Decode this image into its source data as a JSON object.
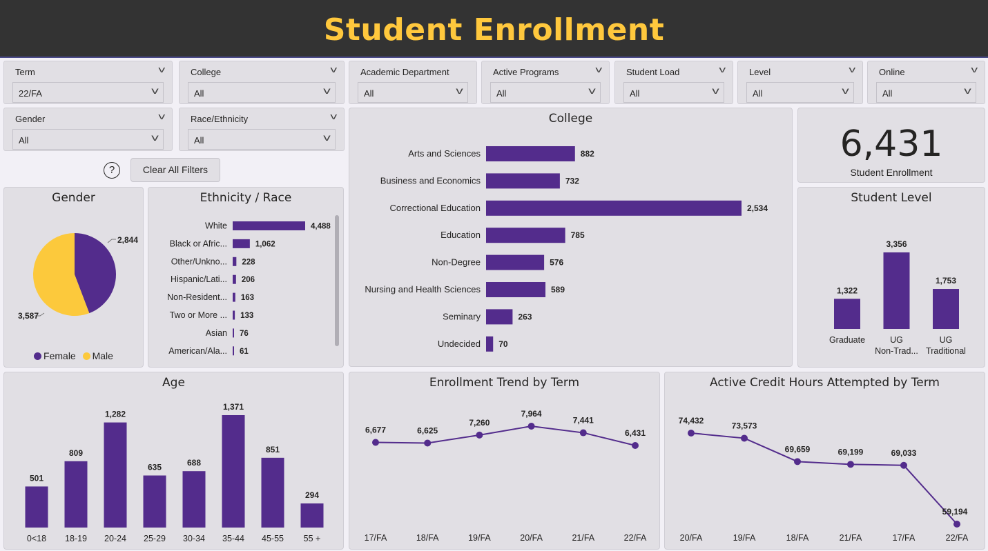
{
  "header": {
    "title": "Student Enrollment"
  },
  "slicers": [
    {
      "label": "Term",
      "value": "22/FA"
    },
    {
      "label": "College",
      "value": "All"
    },
    {
      "label": "Academic Department",
      "value": "All"
    },
    {
      "label": "Active Programs",
      "value": "All"
    },
    {
      "label": "Student Load",
      "value": "All"
    },
    {
      "label": "Level",
      "value": "All"
    },
    {
      "label": "Online",
      "value": "All"
    },
    {
      "label": "Gender",
      "value": "All"
    },
    {
      "label": "Race/Ethnicity",
      "value": "All"
    }
  ],
  "actions": {
    "help": "?",
    "clear_label": "Clear All Filters"
  },
  "kpi": {
    "value": "6,431",
    "label": "Student Enrollment"
  },
  "colors": {
    "purple": "#532c8c",
    "gold": "#fcc93c"
  },
  "icons": [
    "chevron-down-icon",
    "help-icon"
  ],
  "chart_data": [
    {
      "type": "pie",
      "title": "Gender",
      "categories": [
        "Female",
        "Male"
      ],
      "values": [
        2844,
        3587
      ],
      "labels": [
        "2,844",
        "3,587"
      ],
      "legend": [
        "Female",
        "Male"
      ]
    },
    {
      "type": "bar",
      "orientation": "horizontal",
      "title": "Ethnicity / Race",
      "categories": [
        "White",
        "Black or Afric...",
        "Other/Unkno...",
        "Hispanic/Lati...",
        "Non-Resident...",
        "Two or More ...",
        "Asian",
        "American/Ala..."
      ],
      "values": [
        4488,
        1062,
        228,
        206,
        163,
        133,
        76,
        61
      ],
      "labels": [
        "4,488",
        "1,062",
        "228",
        "206",
        "163",
        "133",
        "76",
        "61"
      ]
    },
    {
      "type": "bar",
      "orientation": "horizontal",
      "title": "College",
      "categories": [
        "Arts and Sciences",
        "Business and Economics",
        "Correctional Education",
        "Education",
        "Non-Degree",
        "Nursing and Health Sciences",
        "Seminary",
        "Undecided"
      ],
      "values": [
        882,
        732,
        2534,
        785,
        576,
        589,
        263,
        70
      ],
      "labels": [
        "882",
        "732",
        "2,534",
        "785",
        "576",
        "589",
        "263",
        "70"
      ]
    },
    {
      "type": "bar",
      "title": "Student Level",
      "categories": [
        [
          "Graduate"
        ],
        [
          "UG",
          "Non-Trad..."
        ],
        [
          "UG",
          "Traditional"
        ]
      ],
      "values": [
        1322,
        3356,
        1753
      ],
      "labels": [
        "1,322",
        "3,356",
        "1,753"
      ]
    },
    {
      "type": "bar",
      "title": "Age",
      "categories": [
        "0<18",
        "18-19",
        "20-24",
        "25-29",
        "30-34",
        "35-44",
        "45-55",
        "55 +"
      ],
      "values": [
        501,
        809,
        1282,
        635,
        688,
        1371,
        851,
        294
      ],
      "labels": [
        "501",
        "809",
        "1,282",
        "635",
        "688",
        "1,371",
        "851",
        "294"
      ]
    },
    {
      "type": "line",
      "title": "Enrollment Trend by Term",
      "x": [
        "17/FA",
        "18/FA",
        "19/FA",
        "20/FA",
        "21/FA",
        "22/FA"
      ],
      "values": [
        6677,
        6625,
        7260,
        7964,
        7441,
        6431
      ],
      "labels": [
        "6,677",
        "6,625",
        "7,260",
        "7,964",
        "7,441",
        "6,431"
      ]
    },
    {
      "type": "line",
      "title": "Active Credit Hours Attempted by Term",
      "x": [
        "20/FA",
        "19/FA",
        "18/FA",
        "21/FA",
        "17/FA",
        "22/FA"
      ],
      "values": [
        74432,
        73573,
        69659,
        69199,
        69033,
        59194
      ],
      "labels": [
        "74,432",
        "73,573",
        "69,659",
        "69,199",
        "69,033",
        "59,194"
      ]
    }
  ]
}
